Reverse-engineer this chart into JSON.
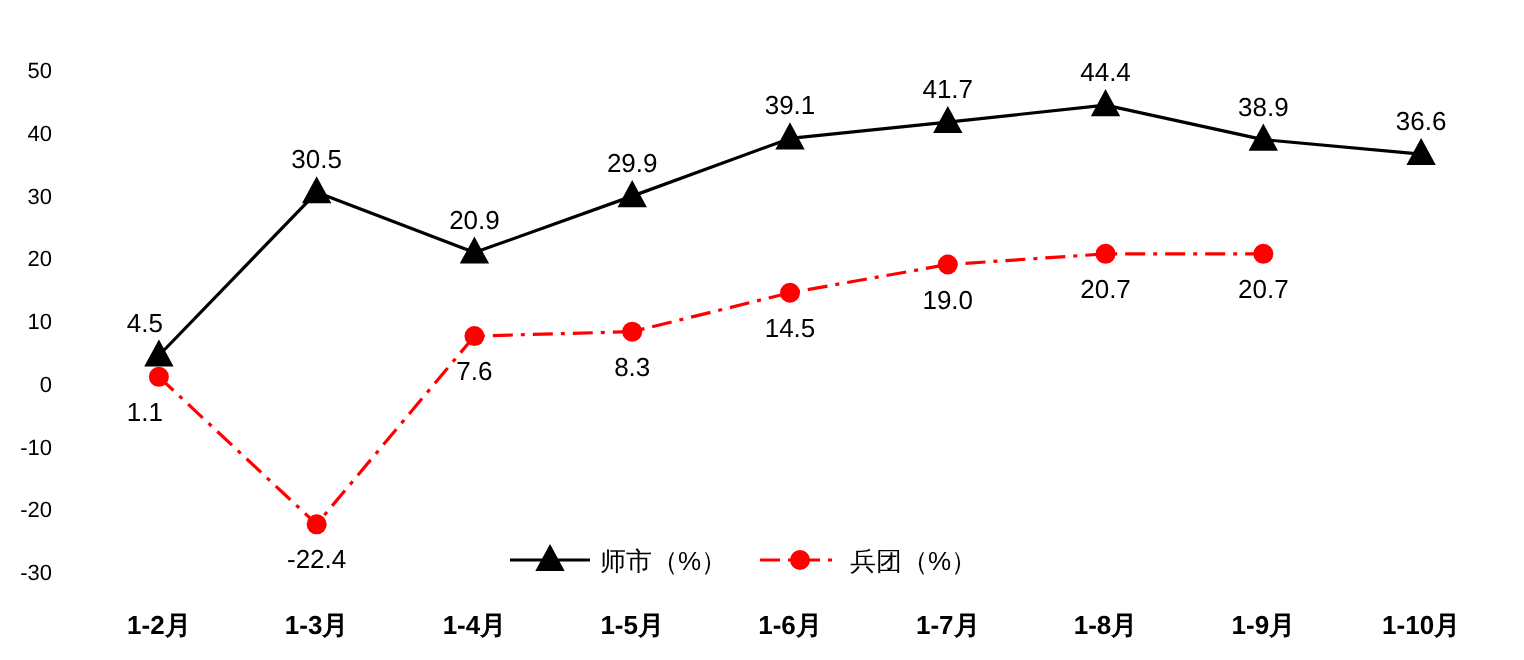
{
  "chart_data": {
    "type": "line",
    "categories": [
      "1-2月",
      "1-3月",
      "1-4月",
      "1-5月",
      "1-6月",
      "1-7月",
      "1-8月",
      "1-9月",
      "1-10月"
    ],
    "series": [
      {
        "name": "师市（%）",
        "color": "#000000",
        "marker": "triangle",
        "line_style": "solid",
        "values": [
          4.5,
          30.5,
          20.9,
          29.9,
          39.1,
          41.7,
          44.4,
          38.9,
          36.6
        ]
      },
      {
        "name": "兵团（%）",
        "color": "#ff0000",
        "marker": "circle",
        "line_style": "dashed",
        "values": [
          1.1,
          -22.4,
          7.6,
          8.3,
          14.5,
          19.0,
          20.7,
          20.7,
          null
        ],
        "value_labels": [
          "1.1",
          "-22.4",
          "7.6",
          "8.3",
          "14.5",
          "19.0",
          "20.7",
          "20.7",
          null
        ]
      }
    ],
    "ylim": [
      -30,
      50
    ],
    "yticks": [
      -30,
      -20,
      -10,
      0,
      10,
      20,
      30,
      40,
      50
    ],
    "data_labels": true,
    "legend": "bottom",
    "grid": false
  }
}
